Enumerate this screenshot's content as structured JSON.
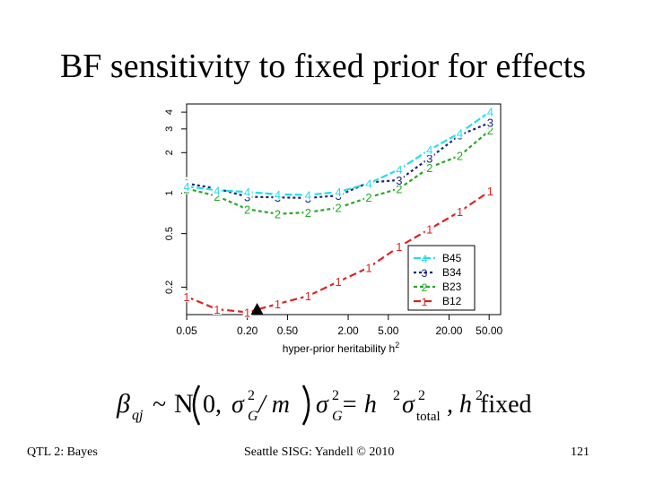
{
  "title": "BF sensitivity to fixed prior for effects",
  "footer": {
    "left": "QTL 2: Bayes",
    "center": "Seattle SISG: Yandell © 2010",
    "page": "121"
  },
  "formula": {
    "beta": "β",
    "beta_sub": "qj",
    "tilde": "~",
    "N": "N",
    "zero": "0,",
    "sigma": "σ",
    "sub_G": "G",
    "sup_2": "2",
    "slash_m": " / m",
    "eq_h": " = h",
    "sub_total": "total",
    "comma_h": ", h",
    "fixed": " fixed"
  },
  "chart_data": {
    "type": "line",
    "title": "",
    "xlabel": "hyper-prior heritability h",
    "xlabel_sup": "2",
    "ylabel": "",
    "xscale": "log",
    "yscale": "log",
    "xlim": [
      0.05,
      65
    ],
    "ylim": [
      0.125,
      4.6
    ],
    "x_ticks": [
      0.05,
      0.2,
      0.5,
      2,
      5,
      20,
      50
    ],
    "x_tick_labels": [
      "0.05",
      "0.20",
      "0.50",
      "2.00",
      "5.00",
      "20.00",
      "50.00"
    ],
    "y_ticks": [
      0.2,
      0.5,
      1,
      2,
      3,
      4
    ],
    "y_tick_labels": [
      "0.2",
      "0.5",
      "1",
      "2",
      "3",
      "4"
    ],
    "x": [
      0.05,
      0.1,
      0.2,
      0.4,
      0.8,
      1.6,
      3.2,
      6.4,
      12.8,
      25.6,
      51.2
    ],
    "marker_x": 0.25,
    "series": [
      {
        "name": "B45",
        "marker": "4",
        "color": "#22ddee",
        "dash": "8,3",
        "values": [
          1.12,
          1.05,
          1.02,
          0.98,
          0.97,
          1.02,
          1.18,
          1.5,
          2.1,
          2.8,
          4.05
        ]
      },
      {
        "name": "B34",
        "marker": "3",
        "color": "#1a237e",
        "dash": "3,3",
        "values": [
          1.18,
          1.08,
          0.94,
          0.93,
          0.92,
          0.96,
          1.2,
          1.25,
          1.82,
          2.7,
          3.35
        ]
      },
      {
        "name": "B23",
        "marker": "2",
        "color": "#22aa22",
        "dash": "4,3",
        "values": [
          1.08,
          0.95,
          0.76,
          0.7,
          0.72,
          0.78,
          0.93,
          1.08,
          1.55,
          1.9,
          2.95
        ]
      },
      {
        "name": "B12",
        "marker": "1",
        "color": "#dd2222",
        "dash": "8,4",
        "values": [
          0.17,
          0.137,
          0.13,
          0.15,
          0.172,
          0.22,
          0.28,
          0.4,
          0.54,
          0.73,
          1.04
        ]
      }
    ],
    "legend_position": "bottom-right"
  }
}
